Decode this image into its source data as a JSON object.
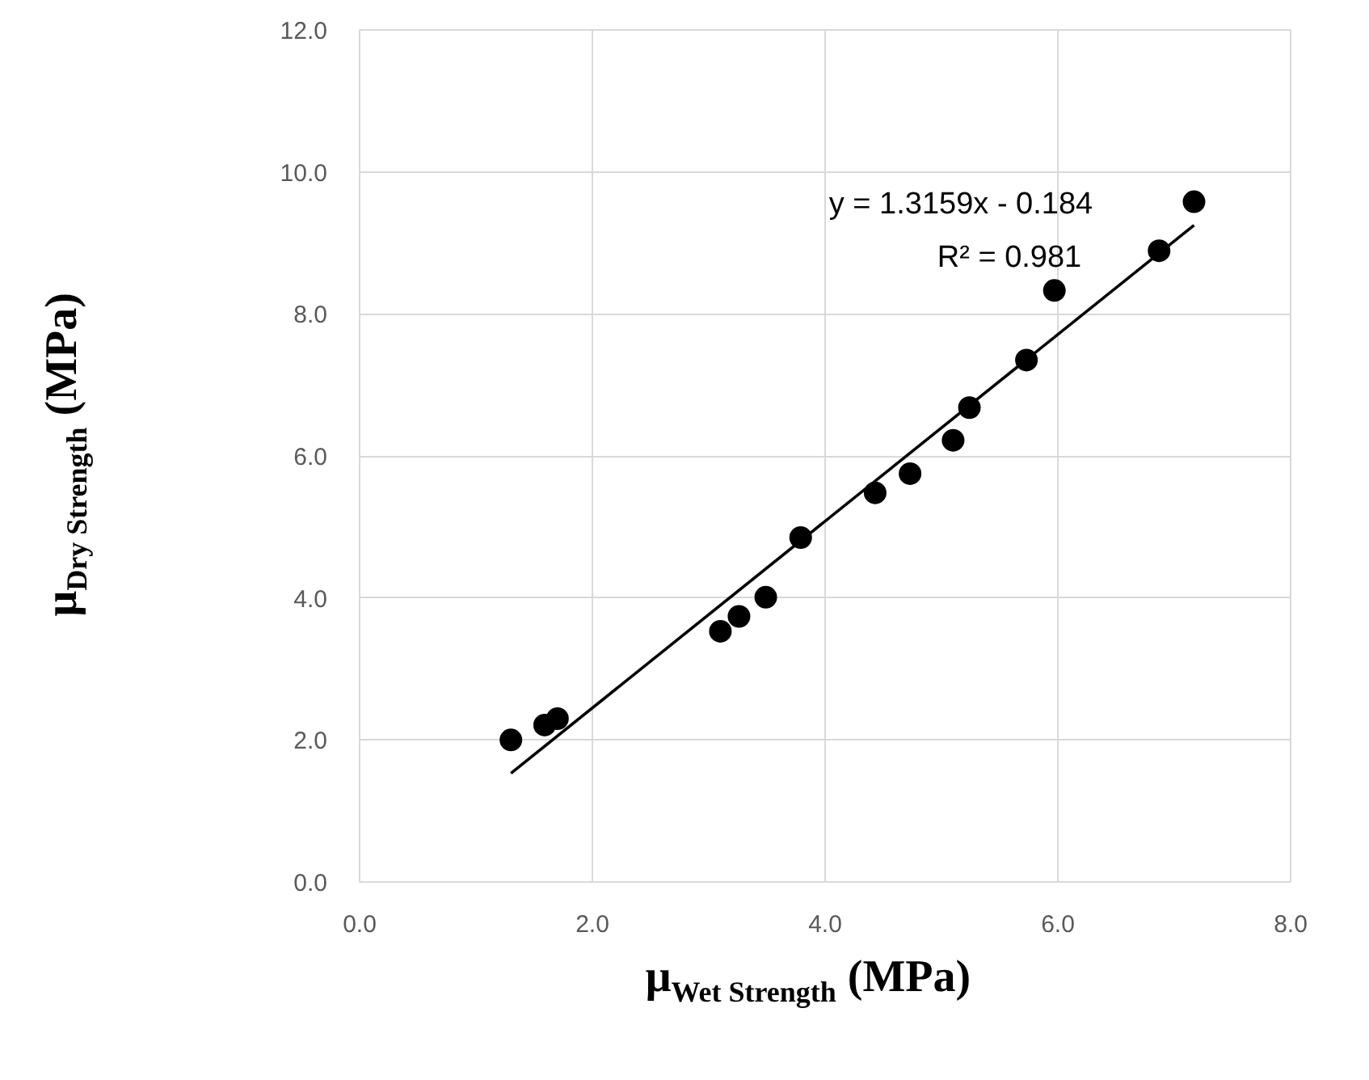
{
  "chart_data": {
    "type": "scatter",
    "xlabel": "μ$_{Wet Strength}$ (MPa)",
    "ylabel": "μ$_{Dry Strength}$ (MPa)",
    "series": [
      {
        "color": "#000000",
        "marker": "circle",
        "x": [
          1.3,
          1.59,
          1.7,
          3.1,
          3.26,
          3.49,
          3.79,
          4.43,
          4.73,
          5.1,
          5.24,
          5.73,
          5.97,
          6.87,
          7.17
        ],
        "values": [
          2.0,
          2.21,
          2.3,
          3.53,
          3.74,
          4.01,
          4.85,
          5.48,
          5.75,
          6.22,
          6.68,
          7.35,
          8.33,
          8.89,
          9.58
        ]
      },
      {
        "type": "line",
        "color": "#000000",
        "line_style": "solid",
        "x": [
          1.3,
          7.17
        ],
        "values": [
          1.53,
          9.25
        ]
      }
    ],
    "annotations": [
      "y = 1.3159x - 0.184",
      "R² = 0.981"
    ],
    "xlim": [
      0,
      8
    ],
    "ylim": [
      0,
      12
    ],
    "xticks": [
      {
        "value": 0,
        "label": "0.0"
      },
      {
        "value": 2,
        "label": "2.0"
      },
      {
        "value": 4,
        "label": "4.0"
      },
      {
        "value": 6,
        "label": "6.0"
      },
      {
        "value": 8,
        "label": "8.0"
      }
    ],
    "yticks": [
      {
        "value": 0,
        "label": "0.0"
      },
      {
        "value": 2,
        "label": "2.0"
      },
      {
        "value": 4,
        "label": "4.0"
      },
      {
        "value": 6,
        "label": "6.0"
      },
      {
        "value": 8,
        "label": "8.0"
      },
      {
        "value": 10,
        "label": "10.0"
      },
      {
        "value": 12,
        "label": "12.0"
      }
    ],
    "grid": true
  }
}
